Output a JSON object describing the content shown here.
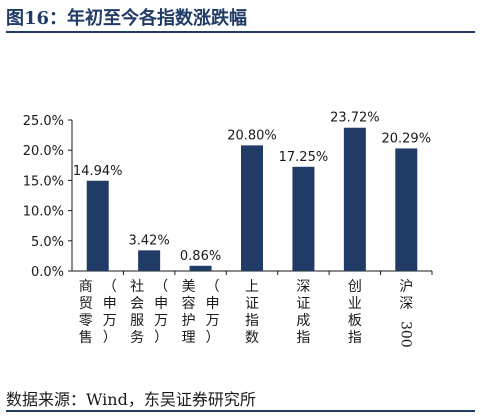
{
  "header": {
    "title": "图16：年初至今各指数涨跌幅"
  },
  "footer": {
    "source": "数据来源：Wind，东吴证券研究所"
  },
  "chart_data": {
    "type": "bar",
    "title": "",
    "xlabel": "",
    "ylabel": "",
    "ylim": [
      0,
      25
    ],
    "yticks": [
      "0.0%",
      "5.0%",
      "10.0%",
      "15.0%",
      "20.0%",
      "25.0%"
    ],
    "grid": false,
    "categories": [
      "商贸零售（申万）",
      "社会服务（申万）",
      "美容护理（申万）",
      "上证指数",
      "深证成指",
      "创业板指",
      "沪深300"
    ],
    "category_lines": [
      [
        [
          "商",
          "贸",
          "零",
          "售"
        ],
        [
          "（",
          "申",
          "万",
          "）"
        ]
      ],
      [
        [
          "社",
          "会",
          "服",
          "务"
        ],
        [
          "（",
          "申",
          "万",
          "）"
        ]
      ],
      [
        [
          "美",
          "容",
          "护",
          "理"
        ],
        [
          "（",
          "申",
          "万",
          "）"
        ]
      ],
      [
        [
          "上",
          "证",
          "指",
          "数"
        ]
      ],
      [
        [
          "深",
          "证",
          "成",
          "指"
        ]
      ],
      [
        [
          "创",
          "业",
          "板",
          "指"
        ]
      ],
      [
        [
          "沪",
          "深",
          "300"
        ]
      ]
    ],
    "values": [
      14.94,
      3.42,
      0.86,
      20.8,
      17.25,
      23.72,
      20.29
    ],
    "data_labels": [
      "14.94%",
      "3.42%",
      "0.86%",
      "20.80%",
      "17.25%",
      "23.72%",
      "20.29%"
    ],
    "bar_color": "#1f3b66"
  }
}
